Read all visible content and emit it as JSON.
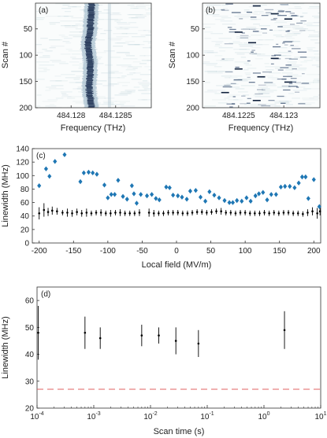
{
  "chart_data": [
    {
      "panel": "(a)",
      "type": "heatmap",
      "xlabel": "Frequency (THz)",
      "ylabel": "Scan #",
      "x_ticks": [
        "484.128",
        "484.1285"
      ],
      "x_range": [
        484.1276,
        484.1289
      ],
      "y_ticks": [
        50,
        100,
        150,
        200
      ],
      "ylim": [
        1,
        200
      ],
      "colormap": "white-to-dark-blue",
      "description_values": {
        "line_center_thz_by_scan": [
          [
            1,
            484.12823
          ],
          [
            40,
            484.12822
          ],
          [
            80,
            484.12819
          ],
          [
            120,
            484.12822
          ],
          [
            160,
            484.1282
          ],
          [
            200,
            484.12823
          ]
        ],
        "secondary_faint_line_thz": 484.12843
      }
    },
    {
      "panel": "(b)",
      "type": "heatmap",
      "xlabel": "Frequency (THz)",
      "ylabel": "Scan #",
      "x_ticks": [
        "484.1225",
        "484.123"
      ],
      "x_range": [
        484.1221,
        484.1234
      ],
      "y_ticks": [
        50,
        100,
        150,
        200
      ],
      "ylim": [
        1,
        200
      ],
      "colormap": "white-to-dark-blue",
      "description_values": {
        "dark_segments_thz_by_scan": [
          [
            5,
            484.1227
          ],
          [
            20,
            484.1229
          ],
          [
            30,
            484.12305
          ],
          [
            55,
            484.1225
          ],
          [
            75,
            484.12265
          ],
          [
            105,
            484.1229
          ],
          [
            125,
            484.1225
          ],
          [
            140,
            484.12275
          ],
          [
            150,
            484.12305
          ],
          [
            170,
            484.12235
          ],
          [
            185,
            484.1227
          ]
        ]
      }
    },
    {
      "panel": "(c)",
      "type": "scatter",
      "xlabel": "Local field (MV/m)",
      "ylabel": "Linewidth (MHz)",
      "xlim": [
        -210,
        210
      ],
      "ylim": [
        0,
        140
      ],
      "x_ticks": [
        -200,
        -150,
        -100,
        -50,
        0,
        50,
        100,
        150,
        200
      ],
      "y_ticks": [
        0,
        20,
        40,
        60,
        80,
        100,
        120,
        140
      ],
      "series": [
        {
          "marker": "diamond",
          "color": "#1f77b4",
          "points": [
            [
              -200,
              85
            ],
            [
              -190,
              110
            ],
            [
              -185,
              99
            ],
            [
              -177,
              121
            ],
            [
              -163,
              131
            ],
            [
              -140,
              91
            ],
            [
              -135,
              104
            ],
            [
              -128,
              105
            ],
            [
              -122,
              104
            ],
            [
              -116,
              102
            ],
            [
              -105,
              86
            ],
            [
              -100,
              67
            ],
            [
              -95,
              72
            ],
            [
              -90,
              72
            ],
            [
              -85,
              93
            ],
            [
              -78,
              69
            ],
            [
              -72,
              65
            ],
            [
              -65,
              85
            ],
            [
              -62,
              73
            ],
            [
              -58,
              59
            ],
            [
              -52,
              72
            ],
            [
              -43,
              70
            ],
            [
              -36,
              72
            ],
            [
              -30,
              66
            ],
            [
              -25,
              64
            ],
            [
              -15,
              83
            ],
            [
              -10,
              82
            ],
            [
              -5,
              71
            ],
            [
              2,
              70
            ],
            [
              8,
              68
            ],
            [
              15,
              65
            ],
            [
              20,
              77
            ],
            [
              28,
              78
            ],
            [
              35,
              68
            ],
            [
              42,
              62
            ],
            [
              48,
              76
            ],
            [
              55,
              71
            ],
            [
              62,
              67
            ],
            [
              70,
              63
            ],
            [
              77,
              60
            ],
            [
              82,
              60
            ],
            [
              88,
              63
            ],
            [
              95,
              62
            ],
            [
              102,
              67
            ],
            [
              108,
              62
            ],
            [
              115,
              70
            ],
            [
              120,
              73
            ],
            [
              126,
              75
            ],
            [
              132,
              64
            ],
            [
              138,
              72
            ],
            [
              145,
              72
            ],
            [
              152,
              83
            ],
            [
              158,
              84
            ],
            [
              165,
              84
            ],
            [
              172,
              82
            ],
            [
              178,
              89
            ],
            [
              183,
              98
            ],
            [
              188,
              98
            ],
            [
              192,
              66
            ],
            [
              200,
              94
            ],
            [
              208,
              54
            ]
          ]
        },
        {
          "marker": "point-with-errorbar",
          "color": "#000000",
          "points": [
            [
              -200,
              44,
              9
            ],
            [
              -193,
              49,
              10
            ],
            [
              -187,
              46,
              6
            ],
            [
              -181,
              48,
              6
            ],
            [
              -174,
              47,
              5
            ],
            [
              -166,
              45,
              4
            ],
            [
              -159,
              45,
              6
            ],
            [
              -152,
              44,
              5
            ],
            [
              -145,
              46,
              5
            ],
            [
              -138,
              44,
              5
            ],
            [
              -131,
              45,
              6
            ],
            [
              -124,
              44,
              4
            ],
            [
              -117,
              45,
              4
            ],
            [
              -110,
              45,
              5
            ],
            [
              -103,
              44,
              4
            ],
            [
              -96,
              44,
              5
            ],
            [
              -89,
              45,
              4
            ],
            [
              -82,
              45,
              5
            ],
            [
              -75,
              44,
              4
            ],
            [
              -68,
              44,
              4
            ],
            [
              -61,
              44,
              4
            ],
            [
              -54,
              45,
              5
            ],
            [
              -40,
              45,
              6
            ],
            [
              -33,
              44,
              5
            ],
            [
              -26,
              44,
              4
            ],
            [
              -19,
              44,
              4
            ],
            [
              -12,
              45,
              4
            ],
            [
              -5,
              45,
              4
            ],
            [
              2,
              45,
              4
            ],
            [
              9,
              44,
              4
            ],
            [
              16,
              44,
              4
            ],
            [
              23,
              45,
              4
            ],
            [
              30,
              46,
              4
            ],
            [
              37,
              46,
              4
            ],
            [
              44,
              45,
              4
            ],
            [
              51,
              46,
              4
            ],
            [
              58,
              47,
              4
            ],
            [
              65,
              47,
              5
            ],
            [
              72,
              45,
              4
            ],
            [
              79,
              45,
              4
            ],
            [
              86,
              44,
              4
            ],
            [
              93,
              45,
              4
            ],
            [
              100,
              45,
              4
            ],
            [
              107,
              44,
              4
            ],
            [
              114,
              44,
              4
            ],
            [
              121,
              44,
              4
            ],
            [
              128,
              45,
              4
            ],
            [
              135,
              44,
              4
            ],
            [
              142,
              45,
              4
            ],
            [
              149,
              44,
              4
            ],
            [
              156,
              45,
              4
            ],
            [
              163,
              45,
              4
            ],
            [
              170,
              44,
              4
            ],
            [
              177,
              44,
              4
            ],
            [
              184,
              43,
              4
            ],
            [
              191,
              45,
              5
            ],
            [
              198,
              47,
              6
            ],
            [
              205,
              44,
              8
            ],
            [
              209,
              47,
              6
            ]
          ]
        }
      ]
    },
    {
      "panel": "(d)",
      "type": "scatter",
      "xlabel": "Scan time (s)",
      "ylabel": "Linewidth (MHz)",
      "xscale": "log",
      "xlim": [
        0.0001,
        10
      ],
      "ylim": [
        20,
        65
      ],
      "y_ticks": [
        20,
        30,
        40,
        50,
        60
      ],
      "x_ticks": [
        {
          "base": "10",
          "exp": "-4",
          "value": 0.0001
        },
        {
          "base": "10",
          "exp": "-3",
          "value": 0.001
        },
        {
          "base": "10",
          "exp": "-2",
          "value": 0.01
        },
        {
          "base": "10",
          "exp": "-1",
          "value": 0.1
        },
        {
          "base": "10",
          "exp": "0",
          "value": 1
        },
        {
          "base": "10",
          "exp": "1",
          "value": 10
        }
      ],
      "series": [
        {
          "marker": "point-with-errorbar",
          "color": "#000000",
          "points": [
            [
              0.000105,
              48,
              10
            ],
            [
              0.0007,
              48,
              6
            ],
            [
              0.0013,
              46,
              4
            ],
            [
              0.007,
              47,
              4
            ],
            [
              0.014,
              47,
              3
            ],
            [
              0.028,
              45,
              5
            ],
            [
              0.07,
              44,
              5
            ],
            [
              2.3,
              49,
              7
            ]
          ]
        }
      ],
      "reference_line": {
        "y": 27,
        "style": "dashed",
        "color": "#e06060"
      }
    }
  ]
}
